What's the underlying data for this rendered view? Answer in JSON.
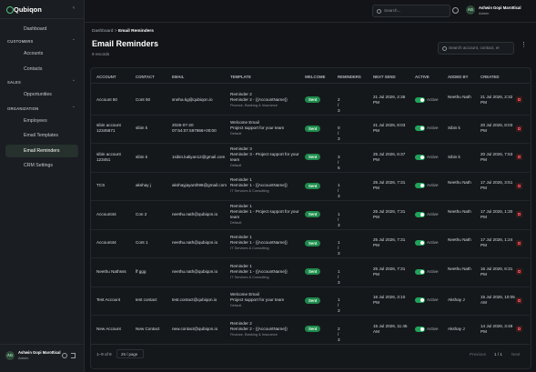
{
  "sidebar": {
    "logo": "Qubiqon",
    "top_item": "Dashboard",
    "groups": [
      {
        "title": "CUSTOMERS",
        "items": [
          "Accounts",
          "Contacts"
        ]
      },
      {
        "title": "SALES",
        "items": [
          "Opportunities"
        ]
      },
      {
        "title": "ORGANIZATION",
        "items": [
          "Employees",
          "Email Templates",
          "Email Reminders",
          "CRM Settings"
        ]
      }
    ],
    "user": {
      "initials": "AG",
      "name": "Ashwin Gopi Marottical",
      "role": "Admin"
    }
  },
  "topbar": {
    "search": "Search...",
    "user": {
      "initials": "AG",
      "name": "Ashwin Gopi Marottical",
      "role": "Admin"
    }
  },
  "header": {
    "breadcrumb": [
      "Dashboard",
      ">",
      "Email Reminders"
    ],
    "title": "Email Reminders",
    "subtitle": "9 records",
    "search": "Search account, contact, er"
  },
  "table": {
    "columns": [
      "ACCOUNT",
      "CONTACT",
      "EMAIL",
      "TEMPLATE",
      "WELCOME",
      "REMINDERS",
      "NEXT SEND",
      "ACTIVE",
      "ADDED BY",
      "CREATED"
    ],
    "rows": [
      {
        "account": "Account 50",
        "contact": "Cont 50",
        "email": "sneha.kg@qubiqon.io",
        "template": {
          "name": "Reminder 2",
          "subject": "Reminder 2 - {{AccountName}}",
          "category": "Finance, Banking & Insurance"
        },
        "welcome": "Sent",
        "reminders": "2 / 3",
        "next_send": "21 Jul 2026, 2:36 PM",
        "active": "Active",
        "added_by": "Neethu Nath",
        "created": "21 Jul 2026, 2:32 PM"
      },
      {
        "account": "sibin account 12345671",
        "contact": "sibin k",
        "email": "2026-07-20 07:54:07.597866+00:00",
        "template": {
          "name": "Welcome Email",
          "subject": "Project support for your team",
          "category": "Default"
        },
        "welcome": "Sent",
        "reminders": "0 / 3",
        "next_send": "21 Jul 2026, 8:03 PM",
        "active": "Active",
        "added_by": "Sibin k",
        "created": "20 Jul 2026, 8:03 PM"
      },
      {
        "account": "sibin account 123451",
        "contact": "sibin k",
        "email": "1sibin.kaliyan12@gmail.com",
        "template": {
          "name": "Reminder 3",
          "subject": "Reminder 3 - Project support for your team",
          "category": "Default"
        },
        "welcome": "Sent",
        "reminders": "3 / 5",
        "next_send": "25 Jul 2026, 6:37 PM",
        "active": "Active",
        "added_by": "Sibin k",
        "created": "20 Jul 2026, 7:53 PM"
      },
      {
        "account": "TCS",
        "contact": "akshay j",
        "email": "akshayjayanth96@gmail.com",
        "template": {
          "name": "Reminder 1",
          "subject": "Reminder 1 - {{AccountName}}",
          "category": "IT Services & Consulting"
        },
        "welcome": "Sent",
        "reminders": "1 / 3",
        "next_send": "25 Jul 2026, 7:31 PM",
        "active": "Active",
        "added_by": "Neethu Nath",
        "created": "17 Jul 2026, 3:51 PM"
      },
      {
        "account": "Account44",
        "contact": "Con 2",
        "email": "neethu.nath@qubiqon.io",
        "template": {
          "name": "Reminder 1",
          "subject": "Reminder 1 - Project support for your team",
          "category": "Default"
        },
        "welcome": "Sent",
        "reminders": "1 / 3",
        "next_send": "25 Jul 2026, 7:31 PM",
        "active": "Active",
        "added_by": "Neethu Nath",
        "created": "17 Jul 2026, 1:30 PM"
      },
      {
        "account": "Account44",
        "contact": "Cont 1",
        "email": "neethu.nath@qubiqon.io",
        "template": {
          "name": "Reminder 1",
          "subject": "Reminder 1 - {{AccountName}}",
          "category": "IT Services & Consulting"
        },
        "welcome": "Sent",
        "reminders": "1 / 3",
        "next_send": "25 Jul 2026, 7:31 PM",
        "active": "Active",
        "added_by": "Neethu Nath",
        "created": "17 Jul 2026, 1:24 PM"
      },
      {
        "account": "Neethu Nathsss",
        "contact": "ff ggg",
        "email": "neethu.nath@qubiqon.io",
        "template": {
          "name": "Reminder 1",
          "subject": "Reminder 1 - {{AccountName}}",
          "category": "IT Services & Consulting"
        },
        "welcome": "Sent",
        "reminders": "1 / 3",
        "next_send": "25 Jul 2026, 7:31 PM",
        "active": "Active",
        "added_by": "Neethu Nath",
        "created": "16 Jul 2026, 6:31 PM"
      },
      {
        "account": "Test Account",
        "contact": "test contact",
        "email": "test.contact@qubiqon.io",
        "template": {
          "name": "Welcome Email",
          "subject": "Project support for your team",
          "category": "Default"
        },
        "welcome": "Sent",
        "reminders": "1 / 3",
        "next_send": "16 Jul 2026, 3:10 PM",
        "active": "Active",
        "added_by": "Akshay J",
        "created": "15 Jul 2026, 10:05 AM"
      },
      {
        "account": "New Account",
        "contact": "New Contact",
        "email": "new.contact@qubiqon.io",
        "template": {
          "name": "Reminder 2",
          "subject": "Reminder 2 - {{AccountName}}",
          "category": "Finance, Banking & Insurance"
        },
        "welcome": "Sent",
        "reminders": "2 / 3",
        "next_send": "15 Jul 2026, 11:45 AM",
        "active": "Active",
        "added_by": "Akshay J",
        "created": "14 Jul 2026, 3:48 PM"
      }
    ]
  },
  "footer": {
    "range": "1–9 of 9",
    "page_size": "25 / page",
    "previous": "Previous",
    "page": "1 / 1",
    "next": "Next"
  }
}
